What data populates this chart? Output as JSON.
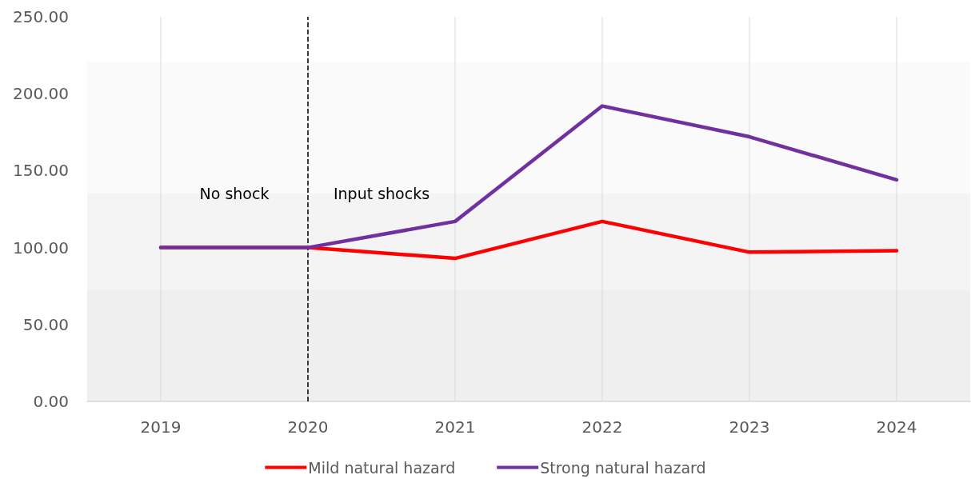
{
  "chart_data": {
    "type": "line",
    "categories": [
      "2019",
      "2020",
      "2021",
      "2022",
      "2023",
      "2024"
    ],
    "series": [
      {
        "name": "Mild natural hazard",
        "color": "#ff0000",
        "values": [
          100,
          100,
          93,
          117,
          97,
          98
        ]
      },
      {
        "name": "Strong natural hazard",
        "color": "#7030a0",
        "values": [
          100,
          100,
          117,
          192,
          172,
          144
        ]
      }
    ],
    "ylim": [
      0,
      250
    ],
    "yticks": [
      {
        "value": 0,
        "label": "0.00"
      },
      {
        "value": 50,
        "label": "50.00"
      },
      {
        "value": 100,
        "label": "100.00"
      },
      {
        "value": 150,
        "label": "150.00"
      },
      {
        "value": 200,
        "label": "200.00"
      },
      {
        "value": 250,
        "label": "250.00"
      }
    ],
    "grid": "x",
    "legend": "bottom",
    "marker": "none",
    "ref_lines": [
      {
        "axis": "x",
        "value": "2020",
        "color": "#000000",
        "line_style": "dashed"
      }
    ],
    "annotations": [
      "No shock",
      "Input shocks"
    ]
  }
}
